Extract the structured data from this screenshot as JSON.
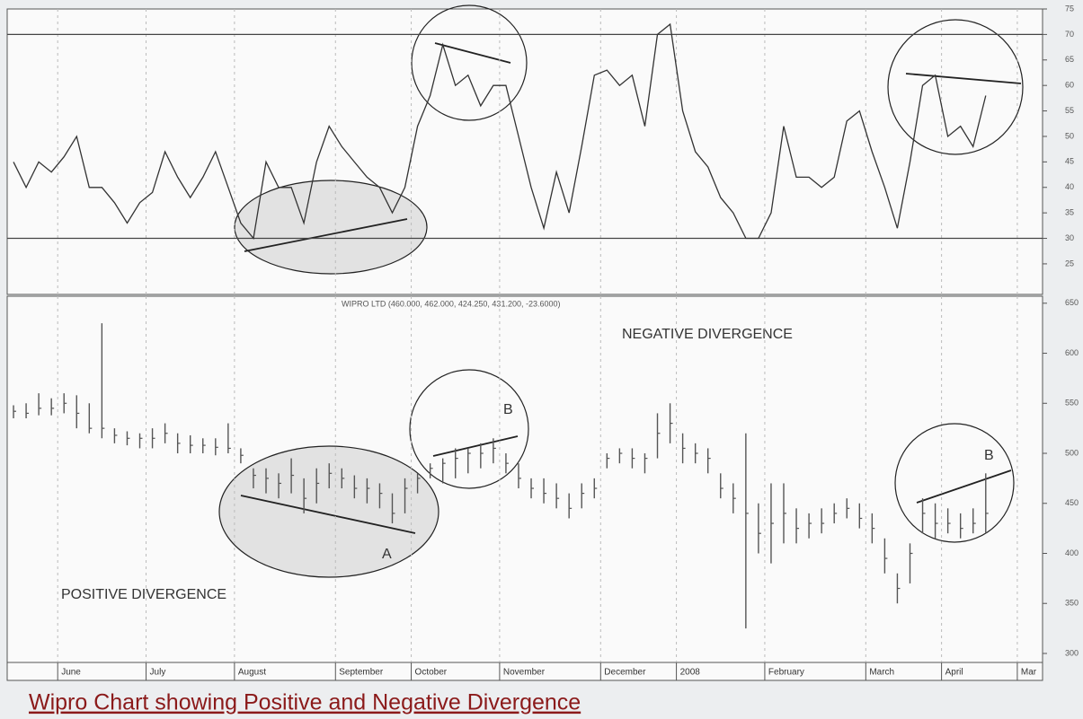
{
  "caption": "Wipro Chart showing Positive and Negative Divergence",
  "chart_data": [
    {
      "type": "line",
      "color": "#333333",
      "ylim": [
        19,
        75
      ],
      "yticks": [
        25,
        30,
        35,
        40,
        45,
        50,
        55,
        60,
        65,
        70,
        75
      ],
      "hlines": [
        30,
        70
      ],
      "values": [
        45,
        40,
        45,
        43,
        46,
        50,
        40,
        40,
        37,
        33,
        37,
        39,
        47,
        42,
        38,
        42,
        47,
        40,
        33,
        30,
        45,
        40,
        40,
        33,
        45,
        52,
        48,
        45,
        42,
        40,
        35,
        40,
        52,
        58,
        68,
        60,
        62,
        56,
        60,
        60,
        50,
        40,
        32,
        43,
        35,
        48,
        62,
        63,
        60,
        62,
        52,
        70,
        72,
        55,
        47,
        44,
        38,
        35,
        30,
        30,
        35,
        52,
        42,
        42,
        40,
        42,
        53,
        55,
        47,
        40,
        32,
        45,
        60,
        62,
        50,
        52,
        48,
        58,
        null,
        null,
        null,
        null
      ]
    },
    {
      "type": "hlc",
      "color": "#555555",
      "title": "WIPRO LTD (460.000, 462.000, 424.250, 431.200, -23.6000)",
      "annotations": [
        "NEGATIVE DIVERGENCE",
        "POSITIVE DIVERGENCE",
        "A",
        "B",
        "B"
      ],
      "ylim": [
        291,
        657
      ],
      "yticks": [
        300,
        350,
        400,
        450,
        500,
        550,
        600,
        650
      ],
      "categories": [
        null,
        null,
        null,
        null,
        "June",
        null,
        null,
        null,
        null,
        null,
        null,
        "July",
        null,
        null,
        null,
        null,
        null,
        null,
        "August",
        null,
        null,
        null,
        null,
        null,
        null,
        null,
        "September",
        null,
        null,
        null,
        null,
        null,
        "October",
        null,
        null,
        null,
        null,
        null,
        null,
        "November",
        null,
        null,
        null,
        null,
        null,
        null,
        null,
        "December",
        null,
        null,
        null,
        null,
        null,
        "2008",
        null,
        null,
        null,
        null,
        null,
        null,
        "February",
        null,
        null,
        null,
        null,
        null,
        null,
        null,
        "March",
        null,
        null,
        null,
        null,
        null,
        "April",
        null,
        null,
        null,
        null,
        null,
        "Mar",
        null
      ],
      "high": [
        548,
        550,
        560,
        555,
        560,
        558,
        550,
        630,
        525,
        522,
        520,
        525,
        530,
        520,
        518,
        515,
        515,
        530,
        505,
        485,
        485,
        480,
        495,
        475,
        485,
        490,
        485,
        478,
        475,
        470,
        460,
        475,
        480,
        490,
        495,
        505,
        505,
        510,
        515,
        500,
        490,
        475,
        475,
        470,
        460,
        470,
        475,
        500,
        505,
        505,
        500,
        540,
        550,
        520,
        510,
        505,
        480,
        470,
        520,
        450,
        470,
        470,
        445,
        440,
        445,
        450,
        455,
        450,
        440,
        415,
        380,
        410,
        455,
        450,
        445,
        440,
        445,
        480,
        null,
        null,
        null,
        null
      ],
      "low": [
        535,
        535,
        538,
        538,
        540,
        525,
        520,
        515,
        510,
        508,
        505,
        505,
        510,
        500,
        500,
        500,
        498,
        500,
        490,
        465,
        460,
        455,
        460,
        440,
        450,
        465,
        465,
        455,
        450,
        445,
        430,
        440,
        460,
        475,
        470,
        475,
        480,
        485,
        490,
        480,
        465,
        455,
        450,
        445,
        435,
        445,
        455,
        485,
        490,
        485,
        480,
        495,
        510,
        490,
        490,
        480,
        455,
        440,
        325,
        400,
        390,
        410,
        410,
        415,
        420,
        430,
        435,
        425,
        410,
        380,
        350,
        370,
        420,
        415,
        420,
        415,
        420,
        420,
        null,
        null,
        null,
        null
      ],
      "close": [
        542,
        540,
        545,
        545,
        550,
        540,
        525,
        525,
        518,
        515,
        515,
        515,
        520,
        510,
        508,
        508,
        506,
        505,
        498,
        478,
        475,
        470,
        478,
        455,
        470,
        480,
        475,
        465,
        465,
        460,
        440,
        465,
        475,
        485,
        490,
        495,
        500,
        500,
        505,
        490,
        475,
        465,
        460,
        455,
        445,
        460,
        465,
        495,
        500,
        495,
        495,
        520,
        530,
        505,
        500,
        495,
        465,
        455,
        440,
        420,
        430,
        440,
        425,
        430,
        430,
        440,
        445,
        435,
        425,
        395,
        365,
        400,
        440,
        430,
        430,
        425,
        430,
        440,
        null,
        null,
        null,
        null
      ]
    }
  ]
}
